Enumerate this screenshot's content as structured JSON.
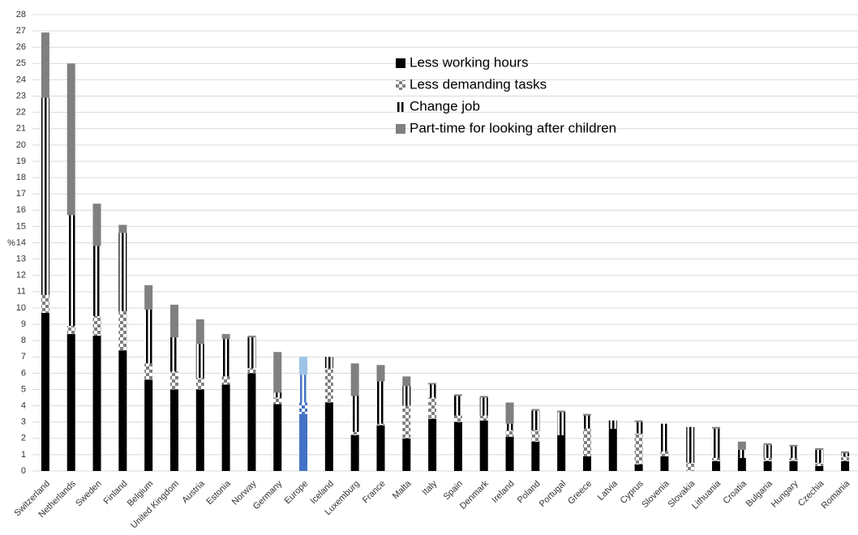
{
  "chart_data": {
    "type": "stacked_bar",
    "y_label": "%",
    "categories": [
      "Switzerland",
      "Netherlands",
      "Sweden",
      "Finland",
      "Belgium",
      "United Kingdom",
      "Austria",
      "Estonia",
      "Norway",
      "Germany",
      "Europe",
      "Iceland",
      "Luxemburg",
      "France",
      "Malta",
      "Italy",
      "Spain",
      "Denmark",
      "Ireland",
      "Poland",
      "Portugal",
      "Greece",
      "Latvia",
      "Cyprus",
      "Slovenia",
      "Slovakia",
      "Lithuania",
      "Croatia",
      "Bulgaria",
      "Hungary",
      "Czechia",
      "Romania"
    ],
    "series": [
      {
        "name": "Less working hours",
        "color": "#000000",
        "pattern": "solid",
        "highlight_color": "#4472c4",
        "values": [
          9.7,
          8.4,
          8.3,
          7.4,
          5.6,
          5.0,
          5.0,
          5.3,
          6.0,
          4.1,
          3.5,
          4.2,
          2.2,
          2.8,
          2.0,
          3.2,
          3.0,
          3.1,
          2.1,
          1.8,
          2.2,
          0.9,
          2.6,
          0.4,
          0.9,
          0,
          0.6,
          0.8,
          0.6,
          0.6,
          0.3,
          0.6
        ]
      },
      {
        "name": "Less demanding tasks",
        "color": "#7f7f7f",
        "pattern": "checker",
        "highlight_color": "#4472c4",
        "values": [
          1.1,
          0.5,
          1.2,
          2.4,
          1.0,
          1.1,
          0.7,
          0.5,
          0.3,
          0.4,
          0.7,
          2.1,
          0.2,
          0.1,
          2.0,
          1.3,
          0.4,
          0.3,
          0.4,
          0.7,
          0,
          1.7,
          0,
          1.9,
          0.3,
          0.5,
          0.2,
          0,
          0.2,
          0.2,
          0.2,
          0.3
        ]
      },
      {
        "name": "Change job",
        "color": "#000000",
        "pattern": "stripes",
        "highlight_color": "#4472c4",
        "values": [
          12.1,
          6.8,
          4.3,
          4.8,
          3.3,
          2.1,
          2.1,
          2.3,
          1.9,
          0.3,
          1.7,
          0.7,
          2.2,
          2.6,
          1.2,
          0.8,
          1.2,
          1.1,
          0.4,
          1.2,
          1.4,
          0.8,
          0.5,
          0.7,
          1.7,
          2.2,
          1.8,
          0.5,
          0.8,
          0.7,
          0.8,
          0.2
        ]
      },
      {
        "name": "Part-time for looking after children",
        "color": "#808080",
        "pattern": "solid",
        "highlight_color": "#9dc3e6",
        "values": [
          4.0,
          9.3,
          2.6,
          0.5,
          1.5,
          2.0,
          1.5,
          0.3,
          0.1,
          2.5,
          1.1,
          0,
          2.0,
          1.0,
          0.6,
          0.1,
          0.1,
          0.1,
          1.3,
          0.1,
          0.1,
          0.1,
          0,
          0.1,
          0,
          0,
          0.1,
          0.5,
          0.1,
          0.1,
          0.1,
          0.1
        ]
      }
    ],
    "highlight_index": 10,
    "ylim": [
      0,
      28
    ],
    "yticks": [
      0,
      1,
      2,
      3,
      4,
      5,
      6,
      7,
      8,
      9,
      10,
      11,
      12,
      13,
      14,
      15,
      16,
      17,
      18,
      19,
      20,
      21,
      22,
      23,
      24,
      25,
      26,
      27,
      28
    ],
    "grid": true
  }
}
